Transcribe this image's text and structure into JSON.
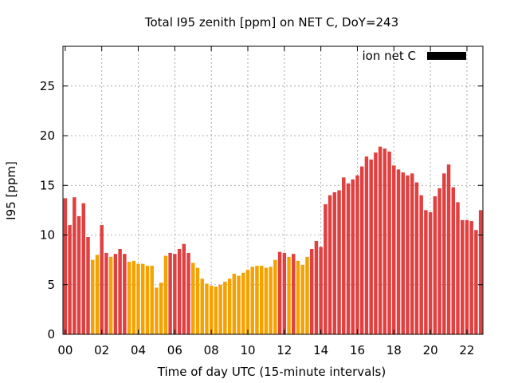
{
  "chart_data": {
    "type": "bar",
    "title": "Total I95 zenith [ppm] on NET C, DoY=243",
    "xlabel": "Time of day UTC (15-minute intervals)",
    "ylabel": "I95 [ppm]",
    "xlim": [
      0,
      22.75
    ],
    "ylim": [
      0,
      29
    ],
    "x_ticks": [
      0,
      2,
      4,
      6,
      8,
      10,
      12,
      14,
      16,
      18,
      20,
      22
    ],
    "x_tick_labels": [
      "00",
      "02",
      "04",
      "06",
      "08",
      "10",
      "12",
      "14",
      "16",
      "18",
      "20",
      "22"
    ],
    "y_ticks": [
      0,
      5,
      10,
      15,
      20,
      25
    ],
    "y_tick_labels": [
      "0",
      "5",
      "10",
      "15",
      "20",
      "25"
    ],
    "grid": true,
    "legend": {
      "label": "ion net C",
      "placement": "top-right",
      "color": "#000000"
    },
    "colors": {
      "red": "#e04040",
      "orange": "#f5a200"
    },
    "series": [
      {
        "x": [
          0,
          0.25,
          0.5,
          0.75,
          1,
          1.25,
          1.5,
          1.75,
          2,
          2.25,
          2.5,
          2.75,
          3,
          3.25,
          3.5,
          3.75,
          4,
          4.25,
          4.5,
          4.75,
          5,
          5.25,
          5.5,
          5.75,
          6,
          6.25,
          6.5,
          6.75,
          7,
          7.25,
          7.5,
          7.75,
          8,
          8.25,
          8.5,
          8.75,
          9,
          9.25,
          9.5,
          9.75,
          10,
          10.25,
          10.5,
          10.75,
          11,
          11.25,
          11.5,
          11.75,
          12,
          12.25,
          12.5,
          12.75,
          13,
          13.25,
          13.5,
          13.75,
          14,
          14.25,
          14.5,
          14.75,
          15,
          15.25,
          15.5,
          15.75,
          16,
          16.25,
          16.5,
          16.75,
          17,
          17.25,
          17.5,
          17.75,
          18,
          18.25,
          18.5,
          18.75,
          19,
          19.25,
          19.5,
          19.75,
          20,
          20.25,
          20.5,
          20.75,
          21,
          21.25,
          21.5,
          21.75,
          22,
          22.25,
          22.5,
          22.75
        ],
        "values": [
          13.7,
          11.0,
          13.8,
          11.9,
          13.2,
          9.8,
          7.5,
          8.0,
          11.0,
          8.2,
          7.8,
          8.1,
          8.6,
          8.1,
          7.3,
          7.4,
          7.1,
          7.1,
          6.9,
          6.9,
          4.7,
          5.2,
          7.9,
          8.2,
          8.1,
          8.6,
          9.1,
          8.2,
          7.2,
          6.7,
          5.6,
          5.1,
          4.9,
          4.8,
          5.0,
          5.3,
          5.6,
          6.1,
          5.9,
          6.2,
          6.5,
          6.8,
          6.9,
          6.9,
          6.7,
          6.8,
          7.5,
          8.3,
          8.2,
          7.8,
          8.1,
          7.4,
          7.0,
          7.8,
          8.6,
          9.4,
          8.8,
          13.1,
          14.0,
          14.3,
          14.5,
          15.8,
          15.2,
          15.6,
          16.0,
          16.9,
          17.9,
          17.6,
          18.3,
          18.9,
          18.7,
          18.4,
          17.0,
          16.6,
          16.3,
          16.0,
          16.2,
          15.3,
          14.0,
          12.5,
          12.3,
          13.9,
          14.7,
          16.2,
          17.1,
          14.8,
          13.3,
          11.5,
          11.5,
          11.4,
          10.5,
          12.5
        ],
        "colors": [
          "red",
          "red",
          "red",
          "red",
          "red",
          "red",
          "orange",
          "orange",
          "red",
          "red",
          "orange",
          "red",
          "red",
          "red",
          "orange",
          "orange",
          "orange",
          "orange",
          "orange",
          "orange",
          "orange",
          "orange",
          "orange",
          "red",
          "red",
          "red",
          "red",
          "red",
          "orange",
          "orange",
          "orange",
          "orange",
          "orange",
          "orange",
          "orange",
          "orange",
          "orange",
          "orange",
          "orange",
          "orange",
          "orange",
          "orange",
          "orange",
          "orange",
          "orange",
          "orange",
          "orange",
          "red",
          "red",
          "orange",
          "red",
          "orange",
          "orange",
          "orange",
          "red",
          "red",
          "red",
          "red",
          "red",
          "red",
          "red",
          "red",
          "red",
          "red",
          "red",
          "red",
          "red",
          "red",
          "red",
          "red",
          "red",
          "red",
          "red",
          "red",
          "red",
          "red",
          "red",
          "red",
          "red",
          "red",
          "red",
          "red",
          "red",
          "red",
          "red",
          "red",
          "red",
          "red",
          "red",
          "red",
          "red",
          "red"
        ]
      }
    ]
  }
}
